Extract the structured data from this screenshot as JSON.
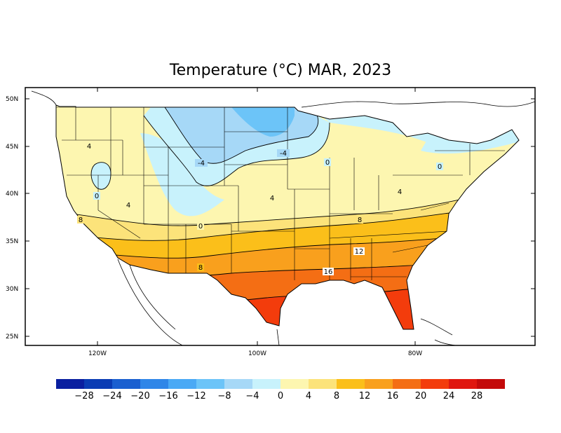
{
  "title": "Temperature (°C) MAR, 2023",
  "map": {
    "lat_ticks": [
      "50N",
      "45N",
      "40N",
      "35N",
      "30N",
      "25N"
    ],
    "lon_ticks": [
      "120W",
      "100W",
      "80W"
    ],
    "contour_labels": [
      "4",
      "-4",
      "-4",
      "0",
      "0",
      "0",
      "4",
      "4",
      "4",
      "8",
      "8",
      "8",
      "12",
      "16",
      "0"
    ]
  },
  "colorbar": {
    "colors": [
      "#0a1fa0",
      "#0a3cb4",
      "#1a5fd0",
      "#2f86e8",
      "#4aa9f5",
      "#6cc4f8",
      "#a6d8f7",
      "#c8f2fc",
      "#fdf6b0",
      "#fce37a",
      "#fbbf1a",
      "#f9a01d",
      "#f46e14",
      "#f33c0c",
      "#e0170f",
      "#c40a0a"
    ],
    "labels": [
      "-28",
      "-24",
      "-20",
      "-16",
      "-12",
      "-8",
      "-4",
      "0",
      "4",
      "8",
      "12",
      "16",
      "20",
      "24",
      "28"
    ]
  }
}
